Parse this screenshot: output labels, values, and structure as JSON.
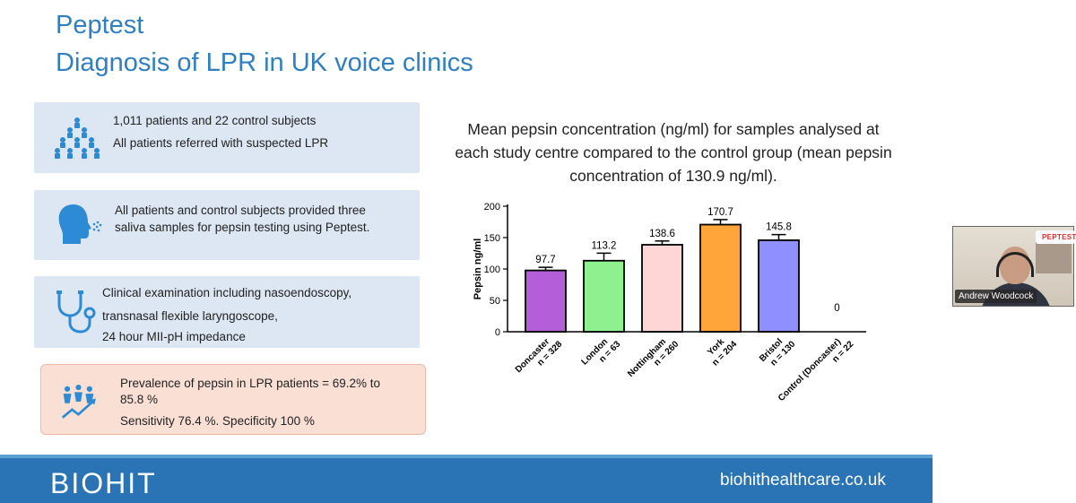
{
  "slide": {
    "title_line1": "Peptest",
    "title_line2": "Diagnosis of LPR in UK voice clinics",
    "boxes": [
      {
        "icon": "patients-group-icon",
        "lines": [
          "1,011 patients and 22 control subjects",
          "All patients referred with suspected LPR"
        ]
      },
      {
        "icon": "saliva-head-icon",
        "lines": [
          "All patients and control subjects provided three",
          "saliva samples for pepsin testing using Peptest."
        ]
      },
      {
        "icon": "stethoscope-icon",
        "lines": [
          "Clinical examination including nasoendoscopy,",
          "transnasal flexible laryngoscope,",
          "24 hour MII-pH impedance"
        ]
      },
      {
        "icon": "growth-people-icon",
        "lines": [
          "Prevalence of pepsin in LPR patients = 69.2% to",
          "85.8 %",
          "Sensitivity 76.4 %. Specificity 100 %"
        ]
      }
    ],
    "chart_title": [
      "Mean pepsin concentration (ng/ml) for samples analysed at",
      "each study centre compared to the control group (mean pepsin",
      "concentration of 130.9 ng/ml)."
    ],
    "footer_brand": "BIOHIT",
    "footer_site": "biohithealthcare.co.uk"
  },
  "chart_data": {
    "type": "bar",
    "categories": [
      "Doncaster\nn = 328",
      "London\nn = 63",
      "Nottingham\nn = 260",
      "York\nn = 204",
      "Bristol\nn = 130",
      "Control (Doncaster)\nn = 22"
    ],
    "values": [
      97.7,
      113.2,
      138.6,
      170.7,
      145.8,
      0
    ],
    "value_labels": [
      "97.7",
      "113.2",
      "138.6",
      "170.7",
      "145.8",
      "0"
    ],
    "errors": [
      5,
      12,
      6,
      8,
      9,
      0
    ],
    "colors": [
      "#b45fd9",
      "#8ef08e",
      "#ffd6d6",
      "#ffa53a",
      "#8f8fff",
      "#ffffff"
    ],
    "ylabel": "Pepsin ng/ml",
    "yticks": [
      0,
      50,
      100,
      150,
      200
    ],
    "ylim": [
      0,
      200
    ]
  },
  "video": {
    "badge": "PEPTEST",
    "participant_name": "Andrew Woodcock"
  }
}
